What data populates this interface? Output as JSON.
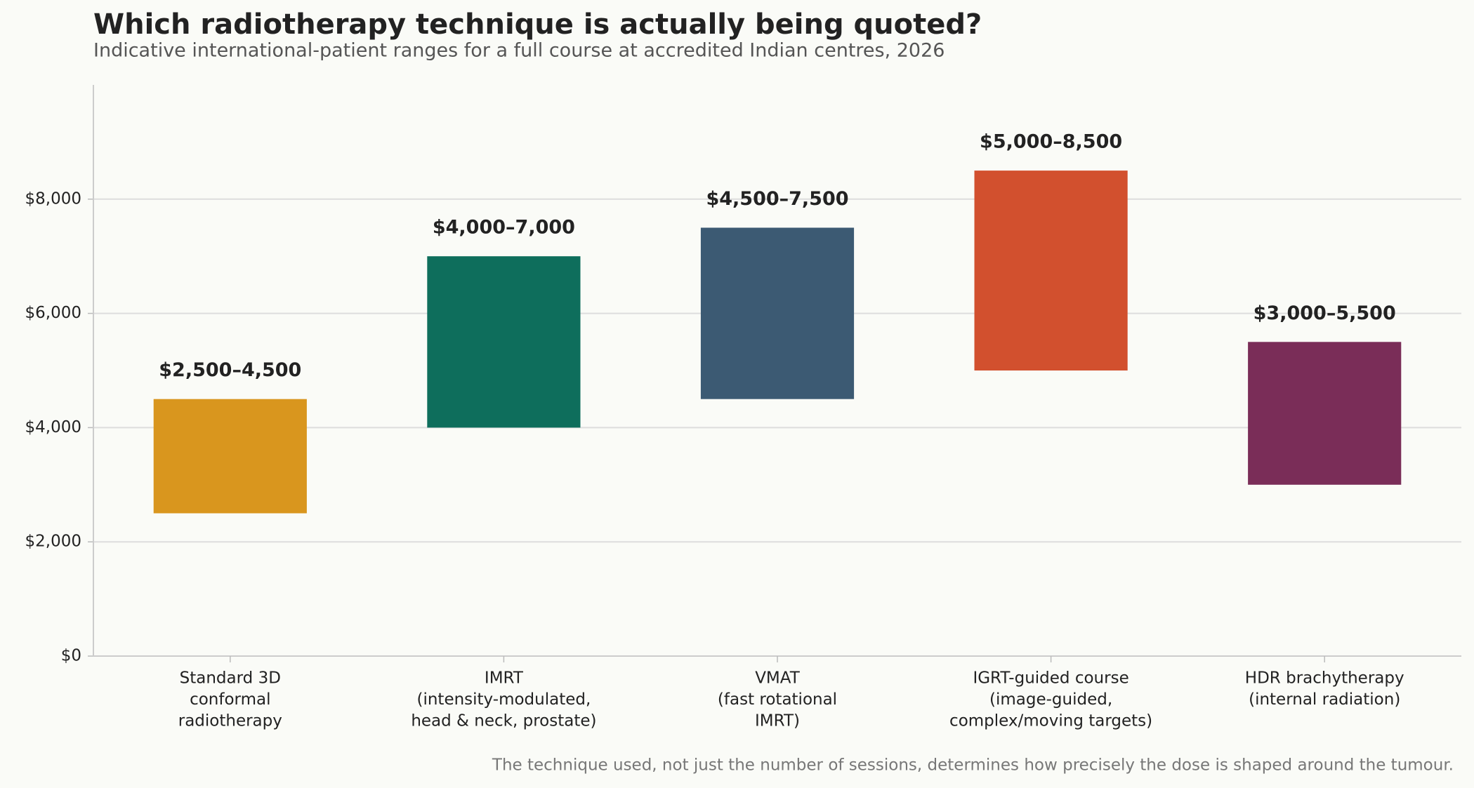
{
  "chart_data": {
    "type": "range-bar",
    "title": "Which radiotherapy technique is actually being quoted?",
    "subtitle": "Indicative international-patient ranges for a full course at accredited Indian centres, 2026",
    "categories": [
      [
        "Standard 3D",
        "conformal",
        "radiotherapy"
      ],
      [
        "IMRT",
        "(intensity-modulated,",
        "head & neck, prostate)"
      ],
      [
        "VMAT",
        "(fast rotational",
        "IMRT)"
      ],
      [
        "IGRT-guided course",
        "(image-guided,",
        "complex/moving targets)"
      ],
      [
        "HDR brachytherapy",
        "(internal radiation)"
      ]
    ],
    "low": [
      2500,
      4000,
      4500,
      5000,
      3000
    ],
    "high": [
      4500,
      7000,
      7500,
      8500,
      5500
    ],
    "value_labels": [
      "$2,500–4,500",
      "$4,000–7,000",
      "$4,500–7,500",
      "$5,000–8,500",
      "$3,000–5,500"
    ],
    "colors": [
      "#d9961e",
      "#0e6e5c",
      "#3c5a73",
      "#d2502e",
      "#7a2d58"
    ],
    "ylim": [
      0,
      10000
    ],
    "yticks": [
      {
        "value": 0,
        "label": "$0"
      },
      {
        "value": 2000,
        "label": "$2,000"
      },
      {
        "value": 4000,
        "label": "$4,000"
      },
      {
        "value": 6000,
        "label": "$6,000"
      },
      {
        "value": 8000,
        "label": "$8,000"
      }
    ],
    "grid": true,
    "footnote": "The technique used, not just the number of sessions, determines how precisely the dose is shaped around the tumour."
  }
}
